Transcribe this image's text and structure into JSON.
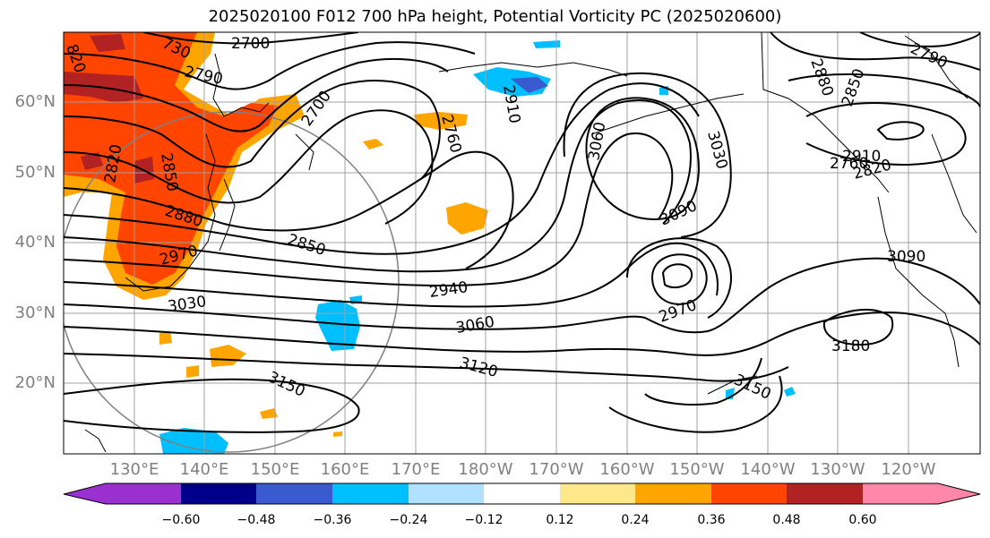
{
  "title": "2025020100 F012 700 hPa height, Potential Vorticity PC (2025020600)",
  "lat_labels": [
    "60°N",
    "50°N",
    "40°N",
    "30°N",
    "20°N"
  ],
  "lon_labels": [
    "130°E",
    "140°E",
    "150°E",
    "160°E",
    "170°E",
    "180°W",
    "170°W",
    "160°W",
    "150°W",
    "140°W",
    "130°W",
    "120°W"
  ],
  "contour_labels": [
    "2700",
    "2790",
    "730",
    "820",
    "2820",
    "2850",
    "2880",
    "2910",
    "2760",
    "2700",
    "3060",
    "3030",
    "3090",
    "2850",
    "2940",
    "3060",
    "3120",
    "3150",
    "3150",
    "2970",
    "2970",
    "3030",
    "3180",
    "3090",
    "2880",
    "2850",
    "2790",
    "2760",
    "2910",
    "2820"
  ],
  "colorbar": {
    "ticks": [
      "−0.60",
      "−0.48",
      "−0.36",
      "−0.24",
      "−0.12",
      "0.12",
      "0.24",
      "0.36",
      "0.48",
      "0.60"
    ],
    "colors": [
      "#9b30d0",
      "#00008b",
      "#3a5bd0",
      "#00bfff",
      "#b0e2ff",
      "#ffffff",
      "#ffe88a",
      "#ffa500",
      "#ff4500",
      "#b22222",
      "#ff88aa"
    ]
  }
}
